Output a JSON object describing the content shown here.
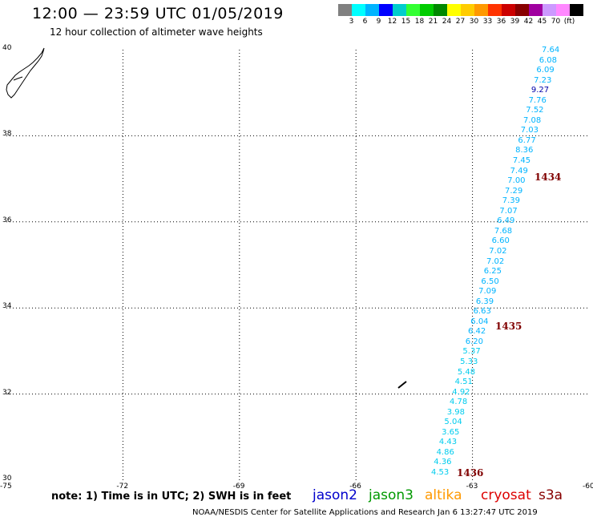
{
  "header": {
    "title": "12:00 — 23:59 UTC 01/05/2019",
    "subtitle": "12 hour collection of altimeter wave heights"
  },
  "legend": {
    "colors": [
      "#808080",
      "#00ffff",
      "#00b4ff",
      "#0000ff",
      "#00cccc",
      "#33ff33",
      "#00cc00",
      "#008800",
      "#ffff00",
      "#ffcc00",
      "#ff9900",
      "#ff3300",
      "#cc0000",
      "#880000",
      "#a000a0",
      "#cc99ff",
      "#ff88ff",
      "#000000"
    ],
    "labels": [
      "3",
      "6",
      "9",
      "12",
      "15",
      "18",
      "21",
      "24",
      "27",
      "30",
      "33",
      "36",
      "39",
      "42",
      "45",
      "70",
      "(ft)"
    ]
  },
  "axes": {
    "x_ticks": [
      "-75",
      "-72",
      "-69",
      "-66",
      "-63",
      "-60"
    ],
    "y_ticks": [
      "40",
      "38",
      "36",
      "34",
      "32",
      "30"
    ]
  },
  "track": {
    "values": [
      {
        "v": "7.64",
        "c": "#00b4ff"
      },
      {
        "v": "6.08",
        "c": "#00b4ff"
      },
      {
        "v": "6.09",
        "c": "#00b4ff"
      },
      {
        "v": "7.23",
        "c": "#00b4ff"
      },
      {
        "v": "9.27",
        "c": "#0000aa"
      },
      {
        "v": "7.76",
        "c": "#00b4ff"
      },
      {
        "v": "7.52",
        "c": "#00b4ff"
      },
      {
        "v": "7.08",
        "c": "#00b4ff"
      },
      {
        "v": "7.03",
        "c": "#00b4ff"
      },
      {
        "v": "6.77",
        "c": "#00b4ff"
      },
      {
        "v": "8.36",
        "c": "#00b4ff"
      },
      {
        "v": "7.45",
        "c": "#00b4ff"
      },
      {
        "v": "7.49",
        "c": "#00b4ff"
      },
      {
        "v": "7.00",
        "c": "#00b4ff"
      },
      {
        "v": "7.29",
        "c": "#00b4ff"
      },
      {
        "v": "7.39",
        "c": "#00b4ff"
      },
      {
        "v": "7.07",
        "c": "#00b4ff"
      },
      {
        "v": "6.49",
        "c": "#00b4ff"
      },
      {
        "v": "7.68",
        "c": "#00b4ff"
      },
      {
        "v": "6.60",
        "c": "#00b4ff"
      },
      {
        "v": "7.02",
        "c": "#00b4ff"
      },
      {
        "v": "7.02",
        "c": "#00b4ff"
      },
      {
        "v": "6.25",
        "c": "#00b4ff"
      },
      {
        "v": "6.50",
        "c": "#00b4ff"
      },
      {
        "v": "7.09",
        "c": "#00b4ff"
      },
      {
        "v": "6.39",
        "c": "#00b4ff"
      },
      {
        "v": "6.63",
        "c": "#00b4ff"
      },
      {
        "v": "6.04",
        "c": "#00b4ff"
      },
      {
        "v": "6.42",
        "c": "#00b4ff"
      },
      {
        "v": "6.20",
        "c": "#00b4ff"
      },
      {
        "v": "5.37",
        "c": "#00ccee"
      },
      {
        "v": "5.33",
        "c": "#00ccee"
      },
      {
        "v": "5.48",
        "c": "#00ccee"
      },
      {
        "v": "4.51",
        "c": "#00ccee"
      },
      {
        "v": "4.92",
        "c": "#00ccee"
      },
      {
        "v": "4.78",
        "c": "#00ccee"
      },
      {
        "v": "3.98",
        "c": "#00ccee"
      },
      {
        "v": "5.04",
        "c": "#00ccee"
      },
      {
        "v": "3.65",
        "c": "#00ccee"
      },
      {
        "v": "4.43",
        "c": "#00ccee"
      },
      {
        "v": "4.86",
        "c": "#00ccee"
      },
      {
        "v": "4.36",
        "c": "#00ccee"
      },
      {
        "v": "4.53",
        "c": "#00ccee"
      }
    ],
    "time_labels": [
      "1434",
      "1435",
      "1436"
    ]
  },
  "note": "note: 1) Time is in UTC; 2) SWH is in feet",
  "satellites": [
    {
      "name": "jason2",
      "color": "#0000cc"
    },
    {
      "name": "jason3",
      "color": "#009900"
    },
    {
      "name": "altika",
      "color": "#ff9900"
    },
    {
      "name": "cryosat",
      "color": "#dd0000"
    },
    {
      "name": "s3a",
      "color": "#880000"
    }
  ],
  "footer": "NOAA/NESDIS Center for Satellite Applications and Research   Jan  6 13:27:47 UTC 2019"
}
